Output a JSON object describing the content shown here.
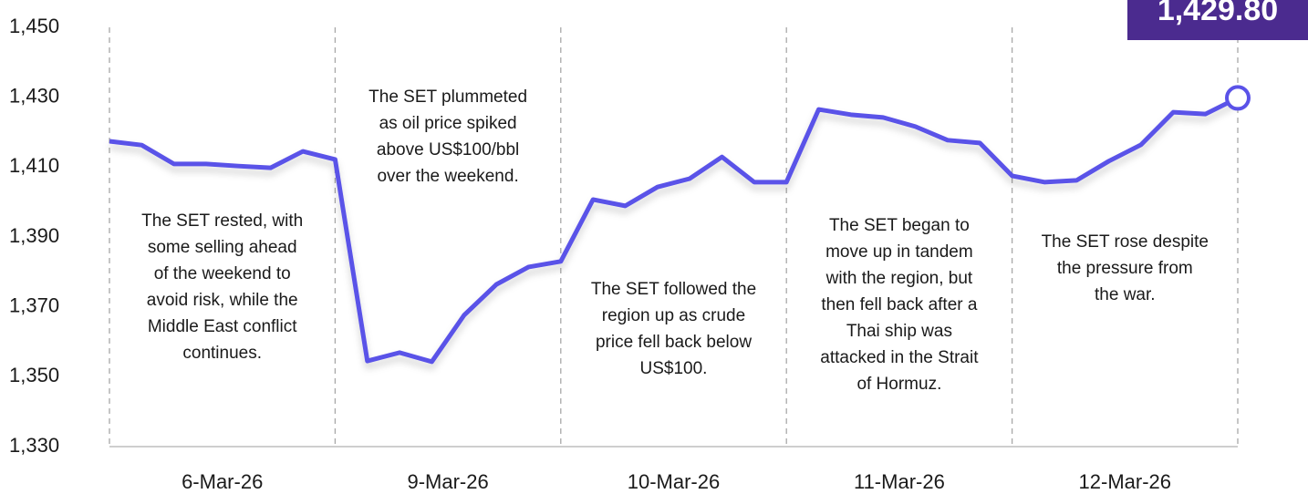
{
  "chart_data": {
    "type": "line",
    "ylim": [
      1330,
      1450
    ],
    "yticks": [
      {
        "value": 1330,
        "label": "1,330"
      },
      {
        "value": 1350,
        "label": "1,350"
      },
      {
        "value": 1370,
        "label": "1,370"
      },
      {
        "value": 1390,
        "label": "1,390"
      },
      {
        "value": 1410,
        "label": "1,410"
      },
      {
        "value": 1430,
        "label": "1,430"
      },
      {
        "value": 1450,
        "label": "1,450"
      }
    ],
    "x_labels": [
      "6-Mar-26",
      "9-Mar-26",
      "10-Mar-26",
      "11-Mar-26",
      "12-Mar-26"
    ],
    "series": [
      {
        "color": "#5a52e8",
        "values": [
          1417.4,
          1416.3,
          1410.9,
          1410.9,
          1410.3,
          1409.8,
          1414.5,
          1412.2,
          1354.5,
          1356.9,
          1354.3,
          1367.6,
          1376.4,
          1381.4,
          1383.0,
          1400.7,
          1398.9,
          1404.3,
          1406.7,
          1412.9,
          1405.7,
          1405.7,
          1426.5,
          1425.0,
          1424.2,
          1421.6,
          1417.7,
          1416.9,
          1407.5,
          1405.7,
          1406.2,
          1411.7,
          1416.4,
          1425.7,
          1425.2,
          1429.8
        ]
      }
    ],
    "last_value_label": "1,429.80",
    "annotations": [
      [
        "The SET rested, with",
        "some selling ahead",
        "of the weekend to",
        "avoid risk, while the",
        "Middle East conflict",
        "continues."
      ],
      [
        "The SET plummeted",
        "as oil price spiked",
        "above US$100/bbl",
        "over the weekend."
      ],
      [
        "The SET followed the",
        "region up as crude",
        "price fell back below",
        "US$100."
      ],
      [
        "The SET began to",
        "move up in tandem",
        "with the region, but",
        "then fell back after a",
        "Thai ship was",
        "attacked in the Strait",
        "of Hormuz."
      ],
      [
        "The SET rose despite",
        "the pressure from",
        "the war."
      ]
    ]
  }
}
